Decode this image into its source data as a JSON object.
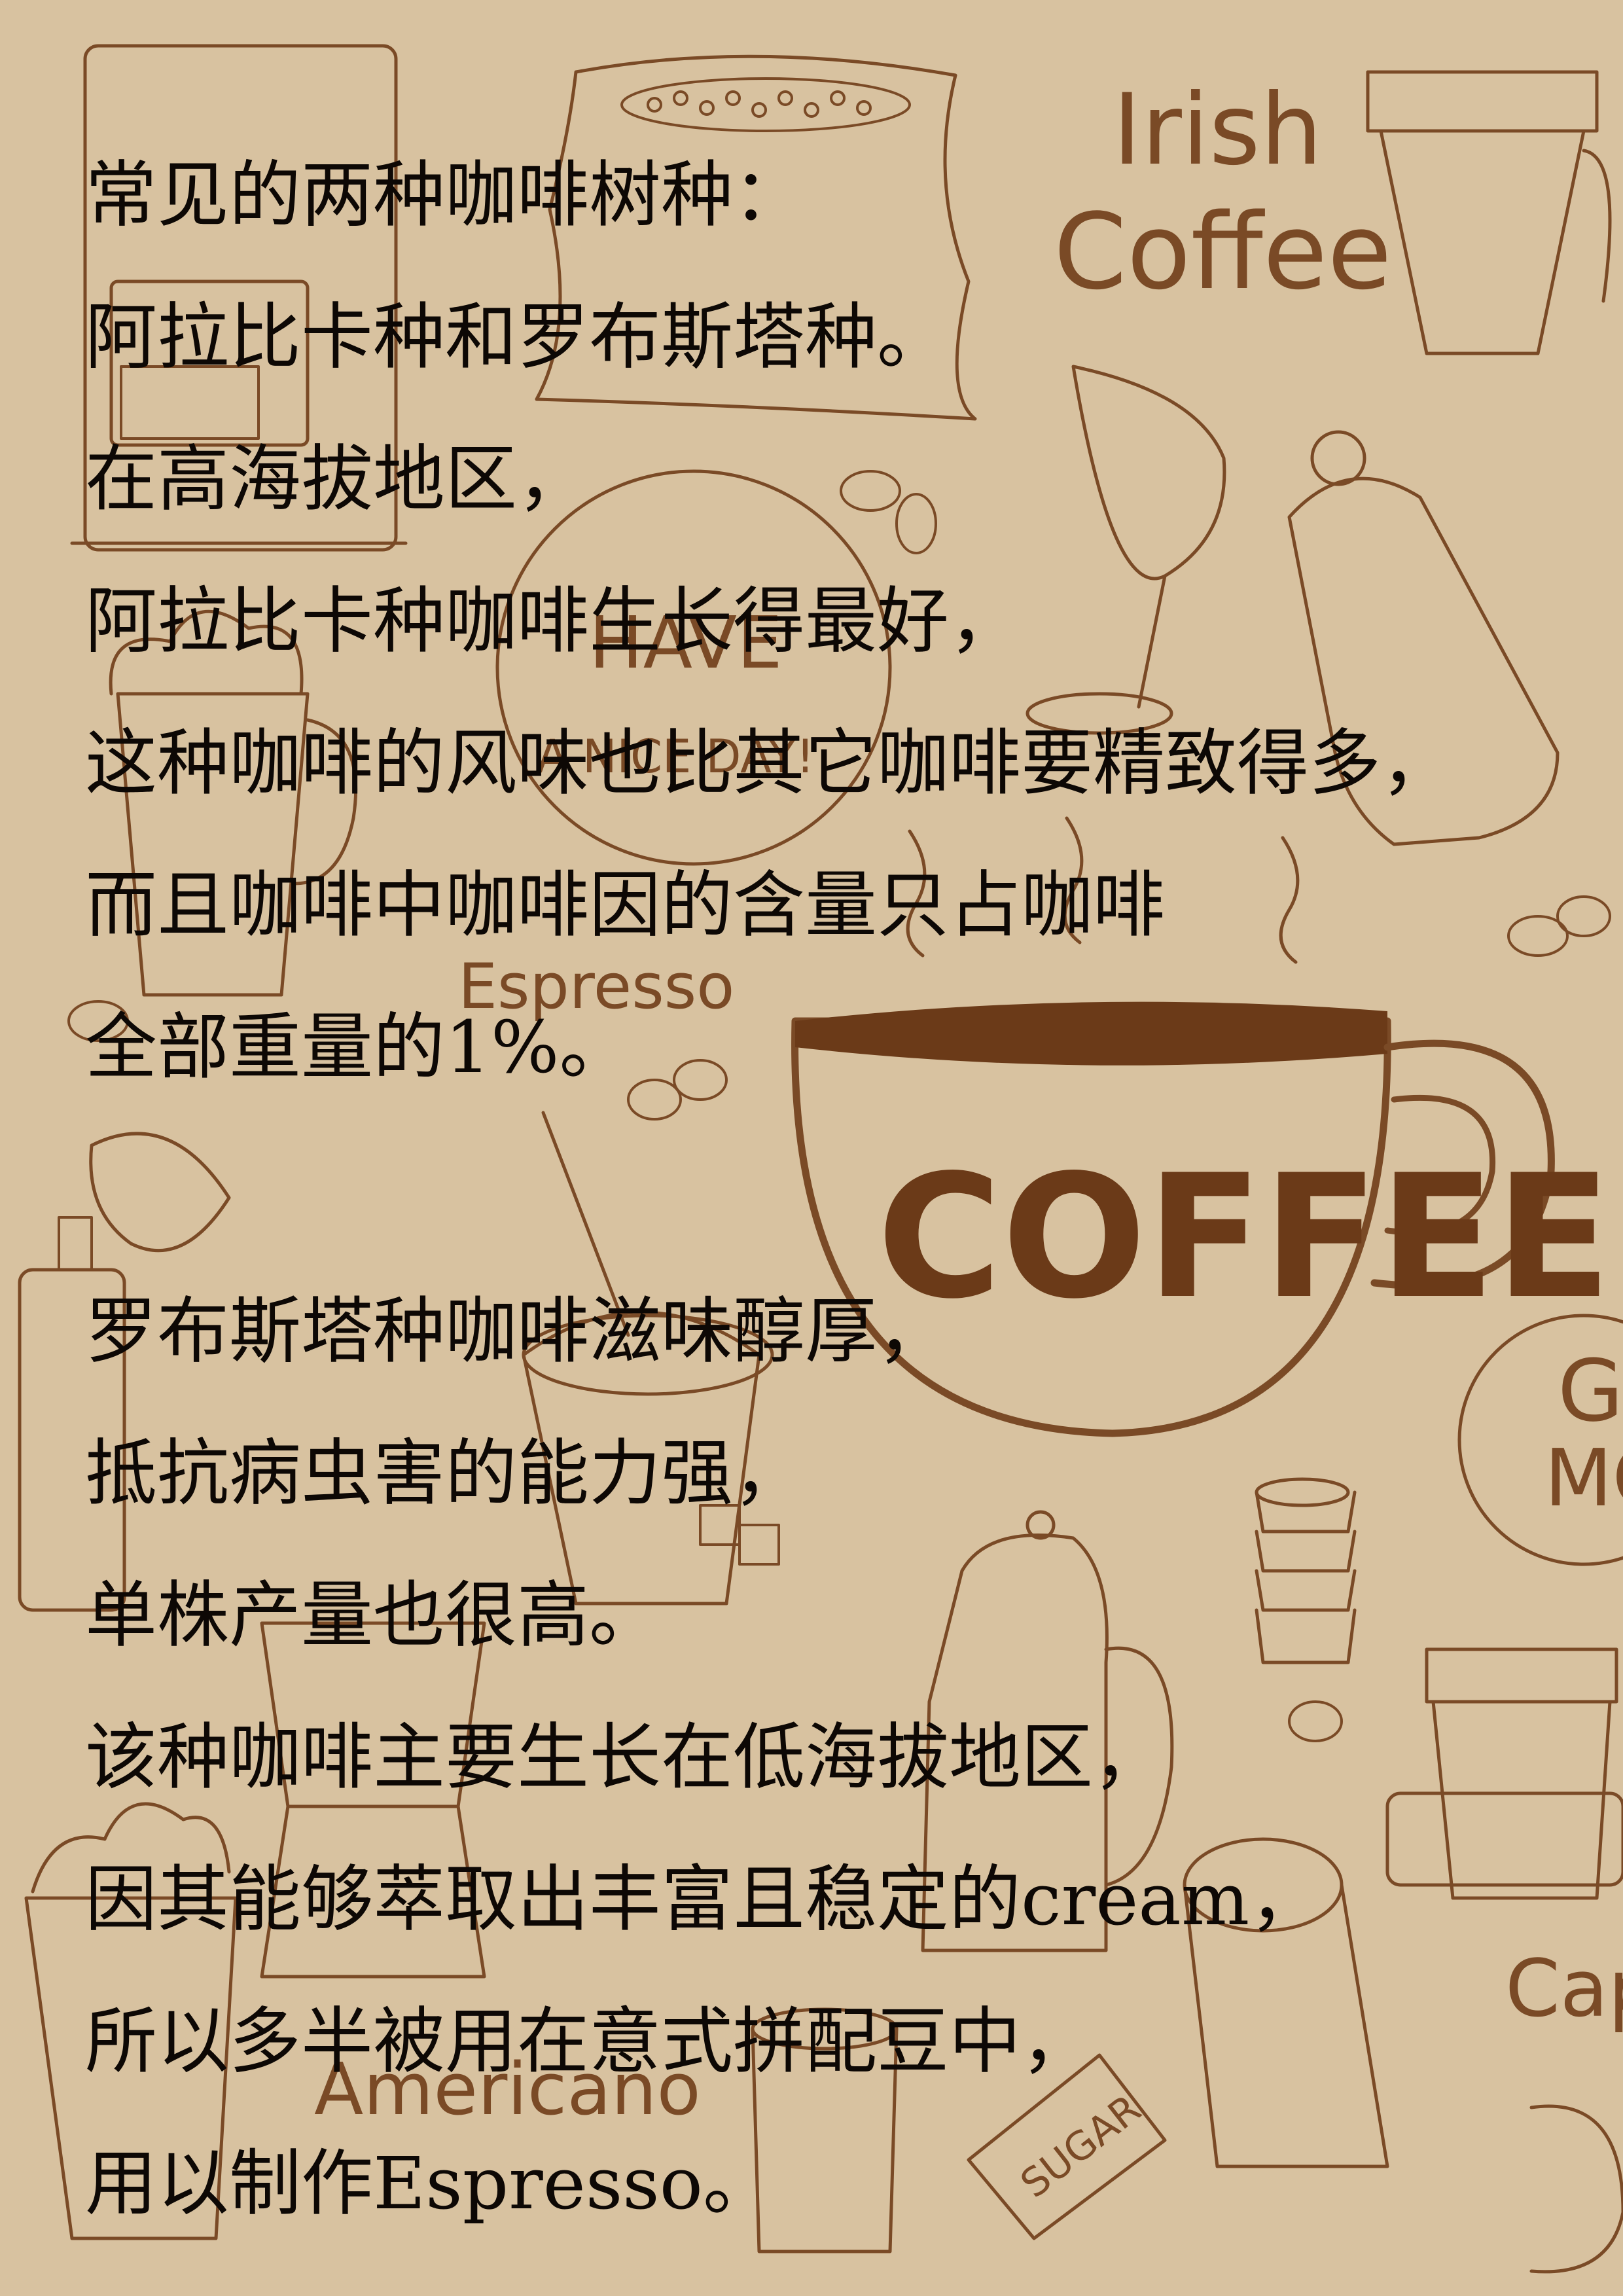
{
  "document": {
    "paragraph_1": [
      "常见的两种咖啡树种：",
      "阿拉比卡种和罗布斯塔种。",
      "在高海拔地区，",
      "阿拉比卡种咖啡生长得最好，",
      "这种咖啡的风味也比其它咖啡要精致得多，",
      "而且咖啡中咖啡因的含量只占咖啡",
      "全部重量的1%。"
    ],
    "paragraph_2": [
      "罗布斯塔种咖啡滋味醇厚，",
      "抵抗病虫害的能力强，",
      "单株产量也很高。",
      "该种咖啡主要生长在低海拔地区，",
      "因其能够萃取出丰富且稳定的cream，",
      "所以多半被用在意式拼配豆中，",
      "用以制作Espresso。"
    ]
  },
  "background": {
    "words": {
      "irish": "Irish",
      "coffee_script": "Coffee",
      "have": "HAVE",
      "nice_day": "A NICE DAY!",
      "espresso": "Espresso",
      "coffee_cup": "COFFEE",
      "good_morning_1": "G",
      "good_morning_2": "MO",
      "cappuccino": "Cap",
      "americano": "Americano",
      "sugar": "SUGAR"
    },
    "colors": {
      "paper": "#d8c2a0",
      "ink": "#7a4a26",
      "coffee_fill": "#6b3a18",
      "text": "#0d0805"
    }
  }
}
